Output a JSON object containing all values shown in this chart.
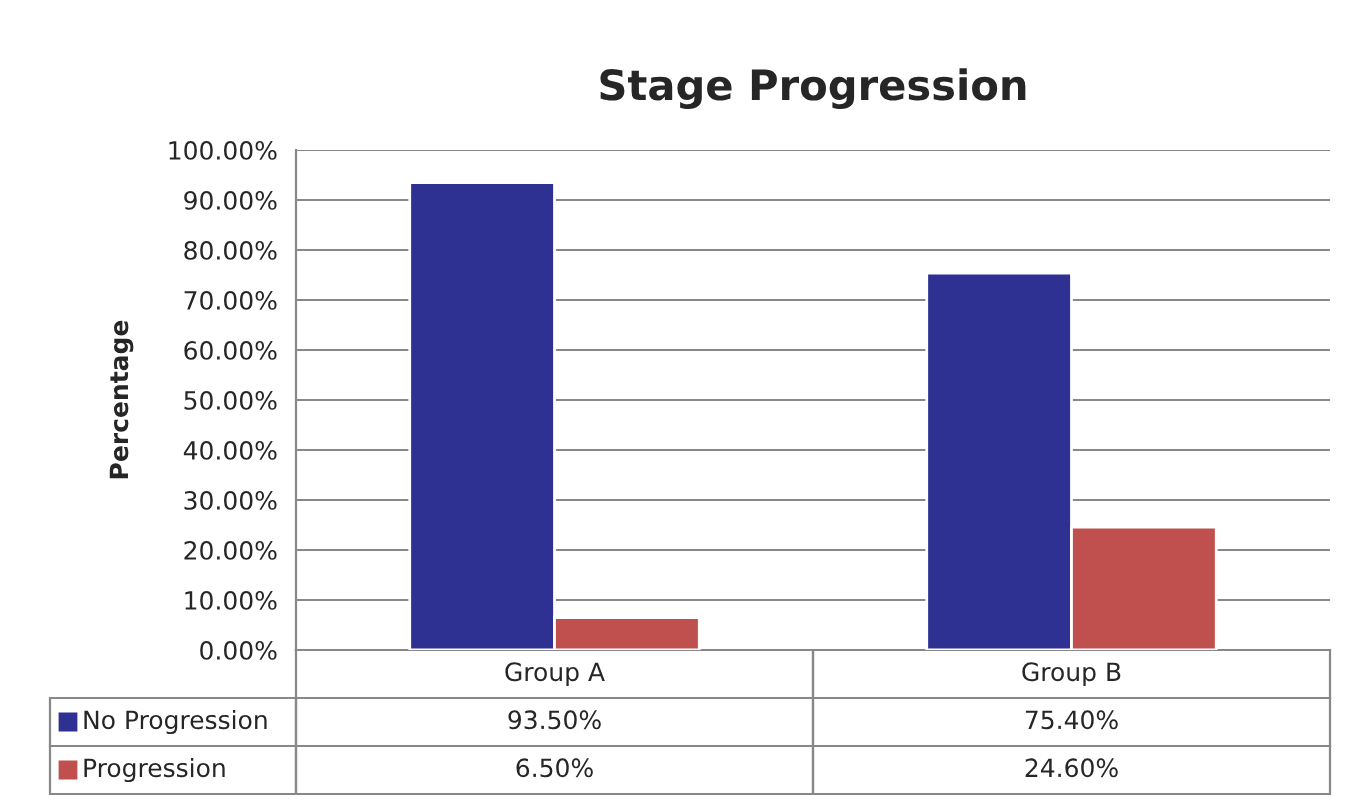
{
  "chart_data": {
    "type": "bar",
    "title": "Stage Progression",
    "ylabel": "Percentage",
    "categories": [
      "Group A",
      "Group B"
    ],
    "series": [
      {
        "name": "No Progression",
        "color": "#2e3192",
        "values": [
          93.5,
          75.4
        ],
        "value_labels": [
          "93.50%",
          "75.40%"
        ]
      },
      {
        "name": "Progression",
        "color": "#c0504d",
        "values": [
          6.5,
          24.6
        ],
        "value_labels": [
          "6.50%",
          "24.60%"
        ]
      }
    ],
    "ylim": [
      0,
      100
    ],
    "yticks": [
      {
        "value": 0,
        "label": "0.00%"
      },
      {
        "value": 10,
        "label": "10.00%"
      },
      {
        "value": 20,
        "label": "20.00%"
      },
      {
        "value": 30,
        "label": "30.00%"
      },
      {
        "value": 40,
        "label": "40.00%"
      },
      {
        "value": 50,
        "label": "50.00%"
      },
      {
        "value": 60,
        "label": "60.00%"
      },
      {
        "value": 70,
        "label": "70.00%"
      },
      {
        "value": 80,
        "label": "80.00%"
      },
      {
        "value": 90,
        "label": "90.00%"
      },
      {
        "value": 100,
        "label": "100.00%"
      }
    ],
    "grid": "y",
    "legend": "bottom"
  }
}
